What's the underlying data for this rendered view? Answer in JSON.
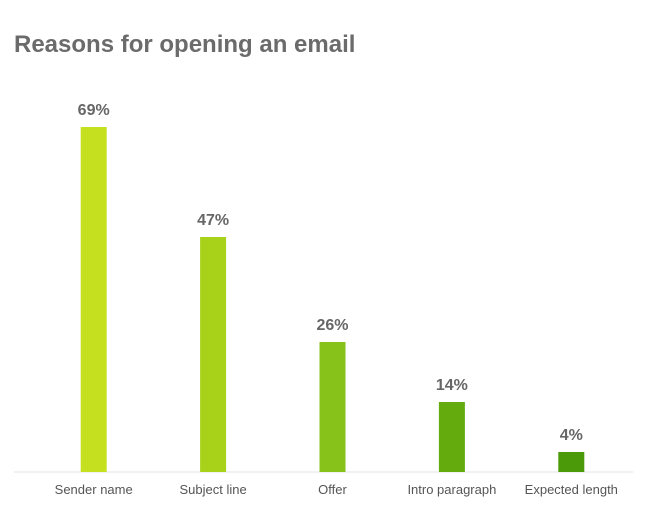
{
  "chart_data": {
    "type": "bar",
    "title": "Reasons for opening an email",
    "categories": [
      "Sender name",
      "Subject line",
      "Offer",
      "Intro paragraph",
      "Expected length"
    ],
    "values": [
      69,
      47,
      26,
      14,
      4
    ],
    "value_labels": [
      "69%",
      "47%",
      "26%",
      "14%",
      "4%"
    ],
    "colors": [
      "#c5e01f",
      "#a8d21a",
      "#86c21a",
      "#64ab0e",
      "#4a9a0a"
    ]
  }
}
